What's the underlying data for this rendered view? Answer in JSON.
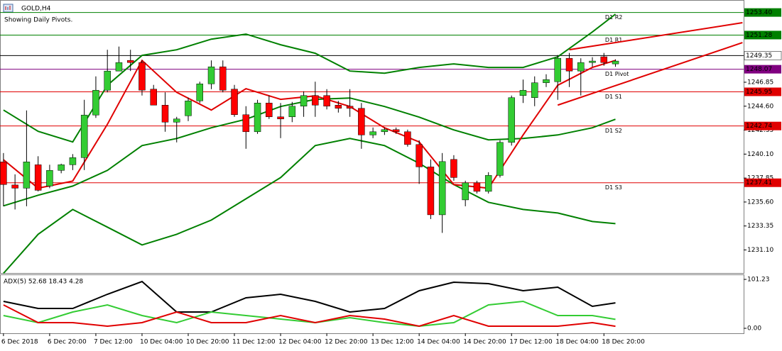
{
  "chart_data": {
    "type": "candlestick",
    "title": "GOLD,H4",
    "subtitle": "Showing Daily Pivots.",
    "categories": [
      "6 Dec 2018",
      null,
      null,
      null,
      "6 Dec 20:00",
      null,
      null,
      null,
      "7 Dec 12:00",
      null,
      null,
      null,
      "10 Dec 04:00",
      null,
      null,
      null,
      "10 Dec 20:00",
      null,
      null,
      null,
      "11 Dec 12:00",
      null,
      null,
      null,
      "12 Dec 04:00",
      null,
      null,
      null,
      "12 Dec 20:00",
      null,
      null,
      null,
      "13 Dec 12:00",
      null,
      null,
      null,
      "14 Dec 04:00",
      null,
      null,
      null,
      "14 Dec 20:00",
      null,
      null,
      null,
      "17 Dec 12:00",
      null,
      null,
      null,
      "18 Dec 04:00",
      null,
      null,
      null,
      "18 Dec 20:00",
      null
    ],
    "open": [
      1239.37,
      1237.2,
      1236.9,
      1239.1,
      1237.1,
      1238.57,
      1239.1,
      1239.77,
      1243.77,
      1246.1,
      1247.9,
      1248.9,
      1248.7,
      1246.2,
      1244.7,
      1243.1,
      1243.7,
      1245.1,
      1246.7,
      1248.3,
      1246.2,
      1243.8,
      1242.2,
      1244.9,
      1243.6,
      1243.6,
      1244.6,
      1245.6,
      1245.6,
      1244.7,
      1244.6,
      1244.4,
      1241.9,
      1242.2,
      1242.4,
      1242.2,
      1241.0,
      1238.9,
      1234.4,
      1239.6,
      1235.8,
      1237.4,
      1236.6,
      1238.1,
      1241.2,
      1245.6,
      1245.4,
      1246.8,
      1246.9,
      1249.1,
      1247.9,
      1248.7,
      1249.24,
      1248.57
    ],
    "high": [
      1240.2,
      1238.2,
      1244.2,
      1239.9,
      1239.1,
      1239.2,
      1240.1,
      1245.2,
      1247.4,
      1249.9,
      1250.2,
      1249.9,
      1248.9,
      1246.6,
      1245.9,
      1243.6,
      1245.4,
      1246.9,
      1248.9,
      1248.9,
      1246.6,
      1244.6,
      1245.2,
      1245.6,
      1244.9,
      1245.0,
      1246.0,
      1246.9,
      1246.2,
      1245.1,
      1246.2,
      1244.9,
      1242.6,
      1242.6,
      1242.6,
      1242.4,
      1241.4,
      1239.6,
      1240.2,
      1240.0,
      1237.6,
      1237.6,
      1238.4,
      1241.4,
      1245.6,
      1247.1,
      1247.4,
      1247.6,
      1249.4,
      1249.6,
      1249.1,
      1249.2,
      1249.6,
      1249.0
    ],
    "low": [
      1235.2,
      1234.9,
      1235.2,
      1236.6,
      1236.9,
      1238.3,
      1238.6,
      1238.6,
      1243.5,
      1245.9,
      1247.9,
      1247.9,
      1245.6,
      1244.7,
      1242.2,
      1241.2,
      1243.2,
      1244.9,
      1246.2,
      1245.9,
      1243.6,
      1240.6,
      1242.0,
      1243.4,
      1241.6,
      1243.1,
      1243.6,
      1243.6,
      1244.3,
      1244.0,
      1243.6,
      1240.6,
      1241.6,
      1241.9,
      1242.0,
      1240.8,
      1237.3,
      1234.0,
      1232.7,
      1237.6,
      1235.2,
      1236.4,
      1236.4,
      1237.9,
      1240.9,
      1244.9,
      1244.6,
      1246.4,
      1245.2,
      1246.4,
      1245.6,
      1248.3,
      1248.4,
      1248.3
    ],
    "close": [
      1237.24,
      1236.9,
      1239.37,
      1236.7,
      1238.57,
      1239.1,
      1239.77,
      1243.77,
      1246.1,
      1247.9,
      1248.7,
      1248.7,
      1246.1,
      1244.7,
      1243.1,
      1243.4,
      1245.1,
      1246.7,
      1248.3,
      1246.1,
      1243.8,
      1242.2,
      1244.9,
      1243.6,
      1243.4,
      1244.6,
      1245.6,
      1244.7,
      1244.6,
      1244.4,
      1244.4,
      1241.9,
      1242.2,
      1242.4,
      1242.2,
      1241.0,
      1238.9,
      1234.4,
      1239.4,
      1237.9,
      1237.4,
      1236.6,
      1238.1,
      1241.2,
      1245.4,
      1246.1,
      1246.8,
      1247.1,
      1249.1,
      1247.9,
      1248.7,
      1248.84,
      1248.7,
      1248.84
    ],
    "up_color": "#33cc33",
    "down_color": "#ff0000",
    "xlim": [
      -0.3,
      64.1
    ],
    "ylim": [
      1229.0,
      1254.44
    ],
    "yticks": [
      {
        "value": 1231.1,
        "label": "1231.10"
      },
      {
        "value": 1233.35,
        "label": "1233.35"
      },
      {
        "value": 1235.6,
        "label": "1235.60"
      },
      {
        "value": 1237.85,
        "label": "1237.85"
      },
      {
        "value": 1240.1,
        "label": "1240.10"
      },
      {
        "value": 1242.35,
        "label": "1242.35"
      },
      {
        "value": 1244.6,
        "label": "1244.60"
      },
      {
        "value": 1246.85,
        "label": "1246.85"
      }
    ],
    "overlays": {
      "x": [
        0,
        3,
        6,
        9,
        12,
        15,
        18,
        21,
        24,
        27,
        30,
        33,
        36,
        39,
        42,
        45,
        48,
        51,
        53
      ],
      "series": [
        {
          "color": "#008000",
          "values": [
            1244.24,
            1242.24,
            1241.24,
            1246.57,
            1249.37,
            1249.9,
            1250.9,
            1251.37,
            1250.37,
            1249.57,
            1247.9,
            1247.7,
            1248.24,
            1248.57,
            1248.24,
            1248.24,
            1249.24,
            1251.57,
            1253.24
          ]
        },
        {
          "color": "#008000",
          "values": [
            1235.24,
            1236.24,
            1237.1,
            1238.57,
            1240.9,
            1241.57,
            1242.57,
            1243.37,
            1244.57,
            1245.24,
            1245.37,
            1244.57,
            1243.57,
            1242.37,
            1241.44,
            1241.57,
            1241.9,
            1242.57,
            1243.37
          ]
        },
        {
          "color": "#008000",
          "values": [
            1228.9,
            1232.57,
            1234.9,
            1233.24,
            1231.57,
            1232.57,
            1233.9,
            1235.9,
            1237.9,
            1240.9,
            1241.57,
            1240.9,
            1239.24,
            1237.24,
            1235.57,
            1234.9,
            1234.57,
            1233.77,
            1233.57
          ]
        },
        {
          "color": "#e00000",
          "values": [
            1239.57,
            1236.9,
            1237.57,
            1242.9,
            1248.9,
            1245.9,
            1244.24,
            1246.24,
            1245.24,
            1245.57,
            1244.57,
            1242.57,
            1241.24,
            1237.24,
            1236.9,
            1241.9,
            1246.57,
            1248.24,
            1248.9
          ]
        }
      ]
    },
    "levels": [
      {
        "name": "D1 R2",
        "value": 1253.4,
        "label": "1253.40",
        "color": "#008000"
      },
      {
        "name": "D1 R1",
        "value": 1251.28,
        "label": "1251.28",
        "color": "#008000"
      },
      {
        "name": "D1 Pivot",
        "value": 1248.07,
        "label": "1248.07",
        "color": "#800080"
      },
      {
        "name": "D1 S1",
        "value": 1245.95,
        "label": "1245.95",
        "color": "#e00000"
      },
      {
        "name": "D1 S2",
        "value": 1242.74,
        "label": "1242.74",
        "color": "#e00000"
      },
      {
        "name": "D1 S3",
        "value": 1237.41,
        "label": "1237.41",
        "color": "#e00000"
      }
    ],
    "current_price": {
      "value": 1249.35,
      "label": "1249.35"
    },
    "trendlines": [
      {
        "color": "#e00000",
        "x": [
          49,
          64
        ],
        "values": [
          1249.9,
          1252.44
        ]
      },
      {
        "color": "#e00000",
        "x": [
          48,
          64
        ],
        "values": [
          1244.7,
          1250.57
        ]
      }
    ],
    "panel": {
      "label": "ADX(5) 52.68 18.43 4.28",
      "ylim": [
        0,
        101.23
      ],
      "yticks": [
        101.23,
        {
          "value": 0,
          "label": "0.00"
        }
      ],
      "series": [
        {
          "color": "#000000",
          "values": [
            55.7,
            41.1,
            41.1,
            70.4,
            96.8,
            33.7,
            33.7,
            63.1,
            70.4,
            55.7,
            33.7,
            41.1,
            77.8,
            95.4,
            92.4,
            77.8,
            85.1,
            45.5,
            52.68
          ]
        },
        {
          "color": "#33cc33",
          "values": [
            26.4,
            11.7,
            33.7,
            48.4,
            26.4,
            11.7,
            33.7,
            26.4,
            19.1,
            11.7,
            22,
            11.7,
            4.4,
            11.7,
            48.4,
            55.7,
            26.4,
            26.4,
            18.43
          ]
        },
        {
          "color": "#e00000",
          "values": [
            48.4,
            11.7,
            11.7,
            4.4,
            11.7,
            33.7,
            11.7,
            11.7,
            26.4,
            11.7,
            26.4,
            19.1,
            4.4,
            26.4,
            4.4,
            4.4,
            4.4,
            11.7,
            4.28
          ]
        }
      ]
    }
  }
}
